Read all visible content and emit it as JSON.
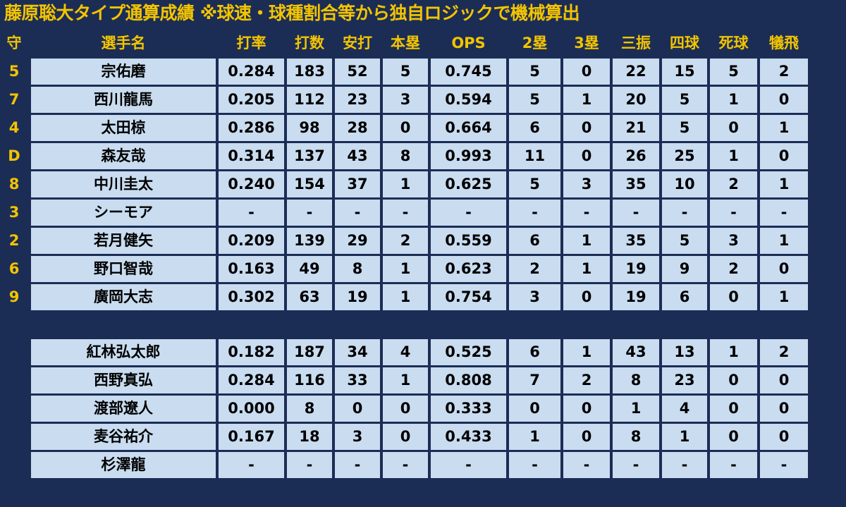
{
  "title": "藤原聡大タイプ通算成績 ※球速・球種割合等から独自ロジックで機械算出",
  "headers": {
    "pos": "守",
    "name": "選手名",
    "avg": "打率",
    "ab": "打数",
    "h": "安打",
    "hr": "本塁",
    "ops": "OPS",
    "doubles": "2塁",
    "triples": "3塁",
    "so": "三振",
    "bb": "四球",
    "hbp": "死球",
    "sac": "犠飛"
  },
  "lineup": [
    {
      "pos": "5",
      "name": "宗佑磨",
      "avg": "0.284",
      "ab": "183",
      "h": "52",
      "hr": "5",
      "ops": "0.745",
      "doubles": "5",
      "triples": "0",
      "so": "22",
      "bb": "15",
      "hbp": "5",
      "sac": "2"
    },
    {
      "pos": "7",
      "name": "西川龍馬",
      "avg": "0.205",
      "ab": "112",
      "h": "23",
      "hr": "3",
      "ops": "0.594",
      "doubles": "5",
      "triples": "1",
      "so": "20",
      "bb": "5",
      "hbp": "1",
      "sac": "0"
    },
    {
      "pos": "4",
      "name": "太田椋",
      "avg": "0.286",
      "ab": "98",
      "h": "28",
      "hr": "0",
      "ops": "0.664",
      "doubles": "6",
      "triples": "0",
      "so": "21",
      "bb": "5",
      "hbp": "0",
      "sac": "1"
    },
    {
      "pos": "D",
      "name": "森友哉",
      "avg": "0.314",
      "ab": "137",
      "h": "43",
      "hr": "8",
      "ops": "0.993",
      "doubles": "11",
      "triples": "0",
      "so": "26",
      "bb": "25",
      "hbp": "1",
      "sac": "0"
    },
    {
      "pos": "8",
      "name": "中川圭太",
      "avg": "0.240",
      "ab": "154",
      "h": "37",
      "hr": "1",
      "ops": "0.625",
      "doubles": "5",
      "triples": "3",
      "so": "35",
      "bb": "10",
      "hbp": "2",
      "sac": "1"
    },
    {
      "pos": "3",
      "name": "シーモア",
      "avg": "-",
      "ab": "-",
      "h": "-",
      "hr": "-",
      "ops": "-",
      "doubles": "-",
      "triples": "-",
      "so": "-",
      "bb": "-",
      "hbp": "-",
      "sac": "-"
    },
    {
      "pos": "2",
      "name": "若月健矢",
      "avg": "0.209",
      "ab": "139",
      "h": "29",
      "hr": "2",
      "ops": "0.559",
      "doubles": "6",
      "triples": "1",
      "so": "35",
      "bb": "5",
      "hbp": "3",
      "sac": "1"
    },
    {
      "pos": "6",
      "name": "野口智哉",
      "avg": "0.163",
      "ab": "49",
      "h": "8",
      "hr": "1",
      "ops": "0.623",
      "doubles": "2",
      "triples": "1",
      "so": "19",
      "bb": "9",
      "hbp": "2",
      "sac": "0"
    },
    {
      "pos": "9",
      "name": "廣岡大志",
      "avg": "0.302",
      "ab": "63",
      "h": "19",
      "hr": "1",
      "ops": "0.754",
      "doubles": "3",
      "triples": "0",
      "so": "19",
      "bb": "6",
      "hbp": "0",
      "sac": "1"
    }
  ],
  "bench": [
    {
      "pos": "",
      "name": "紅林弘太郎",
      "avg": "0.182",
      "ab": "187",
      "h": "34",
      "hr": "4",
      "ops": "0.525",
      "doubles": "6",
      "triples": "1",
      "so": "43",
      "bb": "13",
      "hbp": "1",
      "sac": "2"
    },
    {
      "pos": "",
      "name": "西野真弘",
      "avg": "0.284",
      "ab": "116",
      "h": "33",
      "hr": "1",
      "ops": "0.808",
      "doubles": "7",
      "triples": "2",
      "so": "8",
      "bb": "23",
      "hbp": "0",
      "sac": "0"
    },
    {
      "pos": "",
      "name": "渡部遼人",
      "avg": "0.000",
      "ab": "8",
      "h": "0",
      "hr": "0",
      "ops": "0.333",
      "doubles": "0",
      "triples": "0",
      "so": "1",
      "bb": "4",
      "hbp": "0",
      "sac": "0"
    },
    {
      "pos": "",
      "name": "麦谷祐介",
      "avg": "0.167",
      "ab": "18",
      "h": "3",
      "hr": "0",
      "ops": "0.433",
      "doubles": "1",
      "triples": "0",
      "so": "8",
      "bb": "1",
      "hbp": "0",
      "sac": "0"
    },
    {
      "pos": "",
      "name": "杉澤龍",
      "avg": "-",
      "ab": "-",
      "h": "-",
      "hr": "-",
      "ops": "-",
      "doubles": "-",
      "triples": "-",
      "so": "-",
      "bb": "-",
      "hbp": "-",
      "sac": "-"
    }
  ],
  "colors": {
    "background": "#1b2d55",
    "accent": "#f3c400",
    "cell": "#c9dcf0",
    "cell_text": "#000000"
  }
}
